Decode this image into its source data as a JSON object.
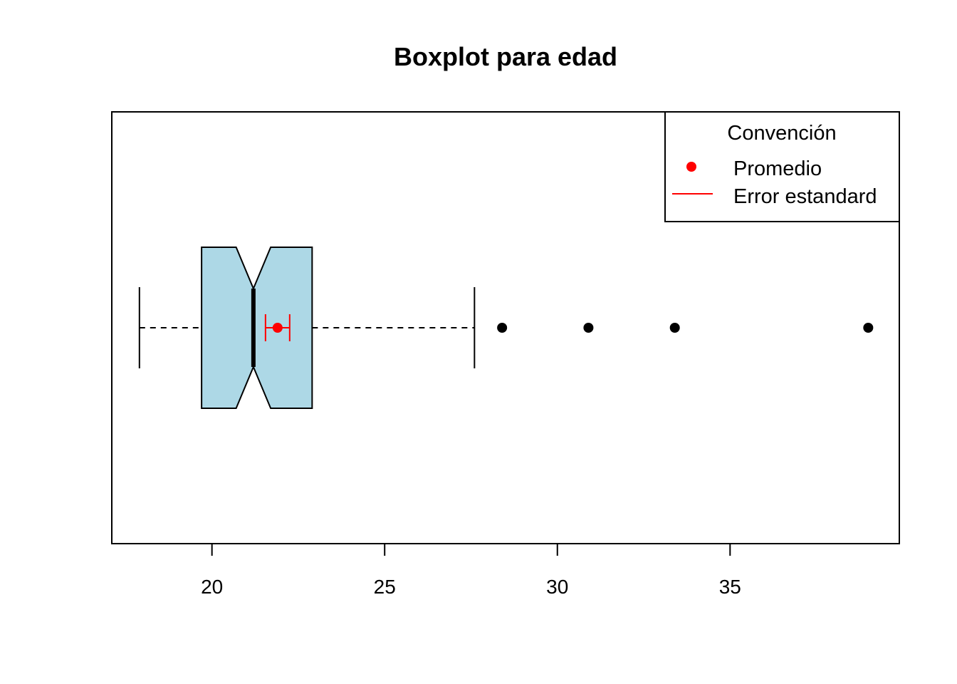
{
  "chart_data": {
    "type": "boxplot",
    "orientation": "horizontal",
    "notched": true,
    "title": "Boxplot para edad",
    "xlabel": "",
    "ylabel": "",
    "xlim": [
      17.1,
      39.9
    ],
    "x_ticks": [
      20,
      25,
      30,
      35
    ],
    "x_tick_labels": [
      "20",
      "25",
      "30",
      "35"
    ],
    "box": {
      "whisker_low": 17.9,
      "q1": 19.7,
      "median": 21.2,
      "q3": 22.9,
      "whisker_high": 27.6,
      "notch_low": 20.7,
      "notch_high": 21.7,
      "fill": "#add8e6"
    },
    "outliers": [
      28.4,
      30.9,
      33.4,
      39.0
    ],
    "mean": {
      "value": 21.9,
      "se_low": 21.55,
      "se_high": 22.25,
      "color": "#ff0000"
    },
    "legend": {
      "title": "Convención",
      "position": "top-right",
      "items": [
        {
          "label": "Promedio",
          "marker": "point",
          "color": "#ff0000"
        },
        {
          "label": "Error estandard",
          "marker": "line",
          "color": "#ff0000"
        }
      ]
    },
    "grid": false
  }
}
